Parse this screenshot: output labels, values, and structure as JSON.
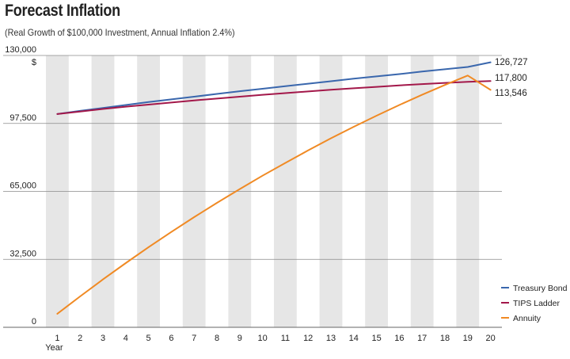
{
  "title": "Forecast Inflation",
  "subtitle": "(Real Growth of $100,000 Investment, Annual Inflation 2.4%)",
  "chart_data": {
    "type": "line",
    "title": "Forecast Inflation",
    "subtitle": "(Real Growth of $100,000 Investment, Annual Inflation 2.4%)",
    "xlabel": "Year",
    "ylabel": "$",
    "x": [
      1,
      2,
      3,
      4,
      5,
      6,
      7,
      8,
      9,
      10,
      11,
      12,
      13,
      14,
      15,
      16,
      17,
      18,
      19,
      20
    ],
    "ylim": [
      0,
      130000
    ],
    "yticks": [
      0,
      32500,
      65000,
      97500,
      130000
    ],
    "ytick_labels": [
      "0",
      "32,500",
      "65,000",
      "97,500",
      "130,000"
    ],
    "grid": "alternating vertical bands, horizontal gridlines",
    "legend": "bottom-right",
    "series": [
      {
        "name": "Treasury Bond",
        "color": "#3a67ad",
        "end_label": "126,727",
        "values": [
          102000,
          103500,
          104900,
          106300,
          107700,
          109000,
          110300,
          111600,
          112900,
          114100,
          115300,
          116500,
          117700,
          118900,
          120000,
          121100,
          122300,
          123400,
          124500,
          126727
        ]
      },
      {
        "name": "TIPS Ladder",
        "color": "#a3184a",
        "end_label": "117,800",
        "values": [
          102000,
          103200,
          104400,
          105500,
          106500,
          107500,
          108500,
          109400,
          110300,
          111200,
          112000,
          112800,
          113600,
          114300,
          115000,
          115700,
          116300,
          116900,
          117400,
          117800
        ]
      },
      {
        "name": "Annuity",
        "color": "#f08a24",
        "end_label": "113,546",
        "values": [
          6500,
          14800,
          22900,
          30700,
          38300,
          45600,
          52700,
          59500,
          66100,
          72500,
          78600,
          84600,
          90400,
          95900,
          101200,
          106300,
          111200,
          115900,
          120400,
          113546
        ]
      }
    ]
  }
}
